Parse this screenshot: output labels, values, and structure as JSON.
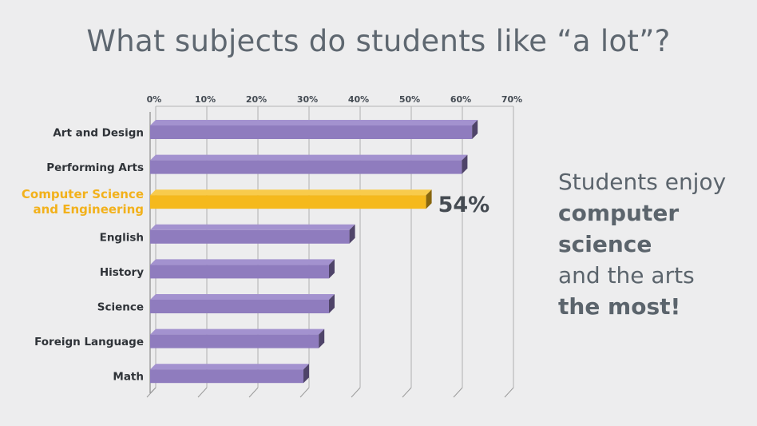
{
  "title": "What subjects do students like “a lot”?",
  "callout": {
    "lines": [
      {
        "text": "Students enjoy",
        "bold": false
      },
      {
        "text": "computer",
        "bold": true
      },
      {
        "text": "science",
        "bold": true
      },
      {
        "text": "and the arts",
        "bold": false
      },
      {
        "text": "the most!",
        "bold": true
      }
    ]
  },
  "colors": {
    "bar": "#8f7cbe",
    "bar_highlight": "#f5b91c",
    "highlight_text": "#f2b11b",
    "text": "#5b646c"
  },
  "chart_data": {
    "type": "bar",
    "orientation": "horizontal",
    "title": "What subjects do students like “a lot”?",
    "x_ticks": [
      "0%",
      "10%",
      "20%",
      "30%",
      "40%",
      "50%",
      "60%",
      "70%"
    ],
    "xlim": [
      0,
      70
    ],
    "grid": true,
    "categories": [
      {
        "label": [
          "Art and Design"
        ],
        "value": 63,
        "highlight": false
      },
      {
        "label": [
          "Performing Arts"
        ],
        "value": 61,
        "highlight": false
      },
      {
        "label": [
          "Computer Science",
          "and Engineering"
        ],
        "value": 54,
        "highlight": true,
        "data_label": "54%"
      },
      {
        "label": [
          "English"
        ],
        "value": 39,
        "highlight": false
      },
      {
        "label": [
          "History"
        ],
        "value": 35,
        "highlight": false
      },
      {
        "label": [
          "Science"
        ],
        "value": 35,
        "highlight": false
      },
      {
        "label": [
          "Foreign Language"
        ],
        "value": 33,
        "highlight": false
      },
      {
        "label": [
          "Math"
        ],
        "value": 30,
        "highlight": false
      }
    ]
  }
}
